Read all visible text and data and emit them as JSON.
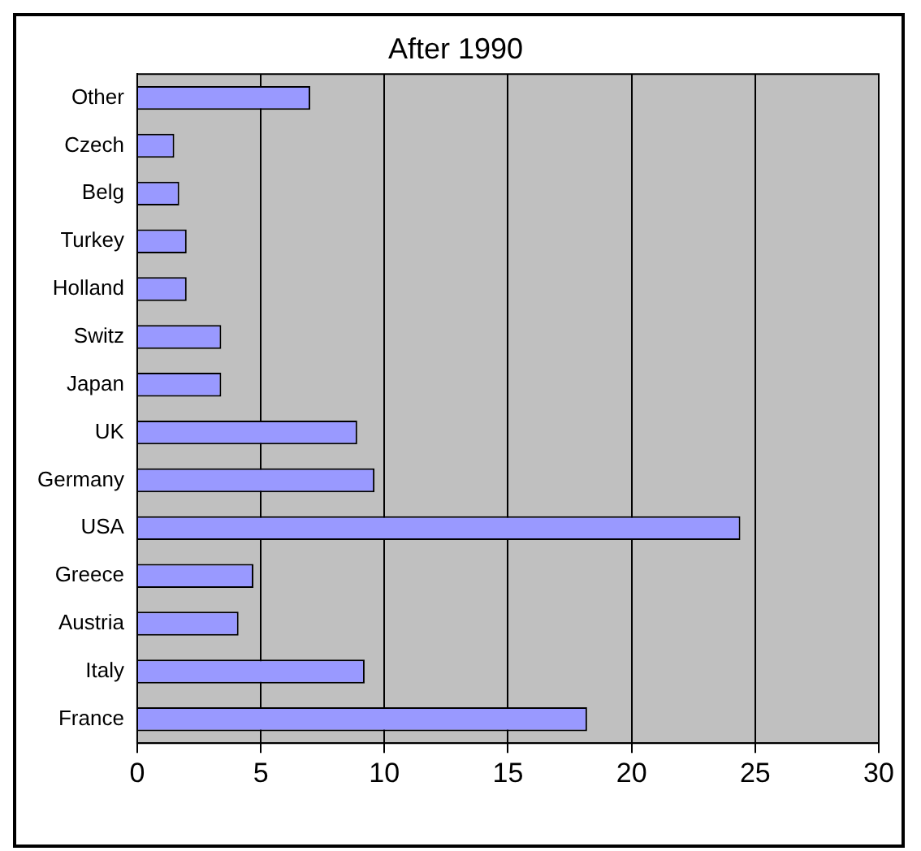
{
  "chart_data": {
    "type": "bar",
    "title": "After 1990",
    "orientation": "horizontal",
    "categories": [
      "Other",
      "Czech",
      "Belg",
      "Turkey",
      "Holland",
      "Switz",
      "Japan",
      "UK",
      "Germany",
      "USA",
      "Greece",
      "Austria",
      "Italy",
      "France"
    ],
    "values": [
      7,
      1.5,
      1.7,
      2,
      2,
      3.4,
      3.4,
      8.9,
      9.6,
      24.4,
      4.7,
      4.1,
      9.2,
      18.2
    ],
    "color": "#9999ff",
    "xlim": [
      0,
      30
    ],
    "xticks": [
      0,
      5,
      10,
      15,
      20,
      25,
      30
    ],
    "grid": "x",
    "legend": false
  }
}
